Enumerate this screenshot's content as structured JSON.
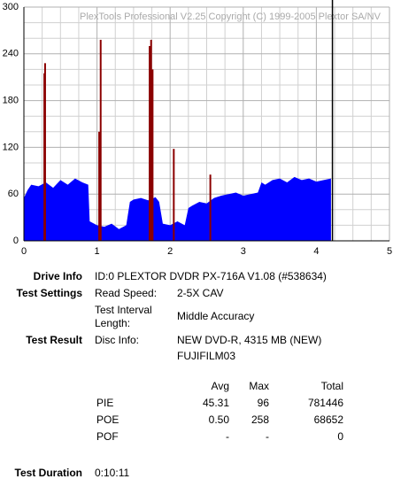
{
  "chart_data": {
    "type": "area-spikes",
    "title": "PlexTools Professional V2.25 Copyright (C) 1999-2005 Plextor SA/NV",
    "xlim": [
      0,
      5
    ],
    "xticks": [
      0,
      1,
      2,
      3,
      4,
      5
    ],
    "x_minor_ticks": [
      0.25,
      0.5,
      0.75,
      1.25,
      1.5,
      1.75,
      2.25,
      2.5,
      2.75,
      3.25,
      3.5,
      3.75,
      4.25,
      4.5,
      4.75
    ],
    "ylim": [
      0,
      300
    ],
    "yticks": [
      0,
      60,
      120,
      180,
      240,
      300
    ],
    "y_minor_ticks": [
      20,
      40,
      80,
      100,
      140,
      160,
      200,
      220,
      260,
      280
    ],
    "grid": true,
    "cursor_x": 4.22,
    "series": [
      {
        "kind": "area",
        "color": "#0000ff",
        "x": [
          0,
          0.05,
          0.1,
          0.2,
          0.3,
          0.4,
          0.5,
          0.6,
          0.7,
          0.8,
          0.88,
          0.9,
          1.0,
          1.1,
          1.2,
          1.3,
          1.4,
          1.45,
          1.5,
          1.6,
          1.7,
          1.8,
          1.85,
          1.9,
          2.0,
          2.1,
          2.2,
          2.25,
          2.3,
          2.4,
          2.5,
          2.6,
          2.7,
          2.8,
          2.9,
          3.0,
          3.1,
          3.2,
          3.25,
          3.3,
          3.4,
          3.5,
          3.6,
          3.7,
          3.8,
          3.9,
          4.0,
          4.1,
          4.2
        ],
        "values": [
          55,
          65,
          72,
          70,
          75,
          68,
          78,
          72,
          80,
          75,
          72,
          25,
          20,
          18,
          22,
          15,
          20,
          50,
          53,
          55,
          52,
          56,
          50,
          22,
          20,
          25,
          20,
          42,
          45,
          50,
          48,
          55,
          58,
          60,
          62,
          58,
          60,
          62,
          75,
          72,
          78,
          80,
          75,
          82,
          78,
          80,
          76,
          78,
          80
        ]
      },
      {
        "kind": "spikes",
        "color": "#8b0000",
        "x": [
          0.28,
          0.29,
          1.03,
          1.05,
          1.72,
          1.74,
          1.76,
          2.05,
          2.55
        ],
        "values": [
          215,
          228,
          140,
          258,
          250,
          258,
          220,
          118,
          85
        ]
      }
    ]
  },
  "report": {
    "drive_info": {
      "label": "Drive Info",
      "value": "ID:0 PLEXTOR DVDR PX-716A V1.08 (#538634)"
    },
    "test_settings": {
      "label": "Test Settings",
      "read_speed_label": "Read Speed:",
      "read_speed": "2-5X CAV",
      "interval_label": "Test Interval Length:",
      "interval": "Middle Accuracy"
    },
    "test_result": {
      "label": "Test Result",
      "disc_info_label": "Disc Info:",
      "disc_info": [
        "NEW DVD-R, 4315 MB (NEW)",
        "FUJIFILM03"
      ]
    },
    "stats": {
      "columns": [
        "Avg",
        "Max",
        "Total"
      ],
      "rows": [
        [
          "PIE",
          "45.31",
          "96",
          "781446"
        ],
        [
          "POE",
          "0.50",
          "258",
          "68652"
        ],
        [
          "POF",
          "-",
          "-",
          "0"
        ]
      ]
    },
    "test_duration": {
      "label": "Test Duration",
      "value": "0:10:11"
    }
  }
}
